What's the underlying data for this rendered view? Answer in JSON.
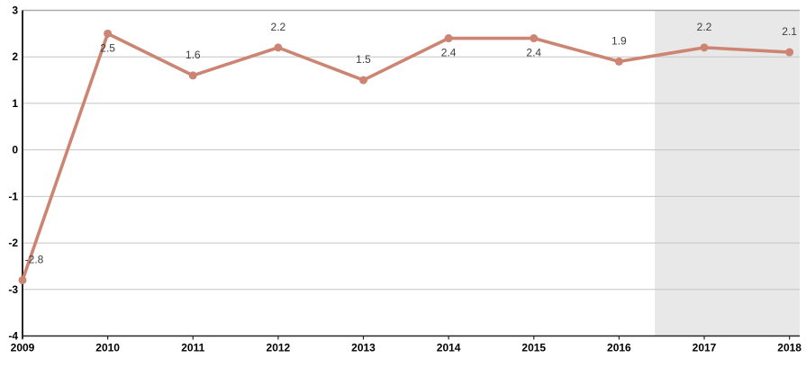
{
  "chart_data": {
    "type": "line",
    "title": "",
    "xlabel": "",
    "ylabel": "",
    "categories": [
      "2009",
      "2010",
      "2011",
      "2012",
      "2013",
      "2014",
      "2015",
      "2016",
      "2017",
      "2018"
    ],
    "x": [
      2009,
      2010,
      2011,
      2012,
      2013,
      2014,
      2015,
      2016,
      2017,
      2018
    ],
    "series": [
      {
        "name": "value",
        "values": [
          -2.8,
          2.5,
          1.6,
          2.2,
          1.5,
          2.4,
          2.4,
          1.9,
          2.2,
          2.1
        ],
        "data_labels": [
          "-2.8",
          "2.5",
          "1.6",
          "2.2",
          "1.5",
          "2.4",
          "2.4",
          "1.9",
          "2.2",
          "2.1"
        ],
        "label_positions": [
          "above",
          "below",
          "above",
          "above",
          "above",
          "below",
          "below",
          "above",
          "above",
          "above"
        ]
      }
    ],
    "xlim": [
      2009,
      2018.12
    ],
    "ylim": [
      -4,
      3
    ],
    "yticks": [
      3,
      2,
      1,
      0,
      -1,
      -2,
      -3,
      -4
    ],
    "grid": true,
    "legend": "none",
    "markers": true,
    "shaded_region": {
      "from_x": 2016.42,
      "to_x": 2018.12
    },
    "colors": {
      "line": "#cd8573",
      "marker": "#cd8573",
      "gridline": "#c4c4c4",
      "top_border": "#a9a9a9",
      "axis": "#262626",
      "data_label": "#3d3d3d",
      "tick_label": "#000000",
      "shaded_region": "#e8e8e8",
      "background": "#ffffff"
    }
  }
}
